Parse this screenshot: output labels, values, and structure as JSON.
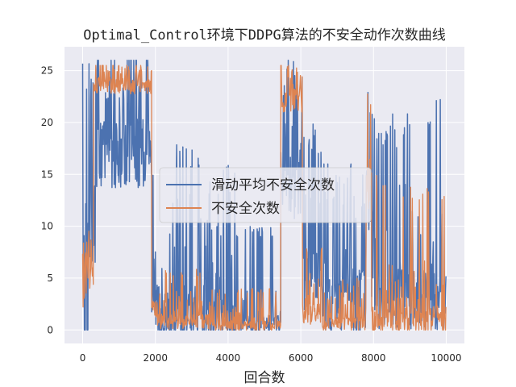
{
  "chart_data": {
    "type": "line",
    "title": "Optimal_Control环境下DDPG算法的不安全动作次数曲线",
    "xlabel": "回合数",
    "ylabel": "",
    "xlim": [
      -500,
      10500
    ],
    "ylim": [
      -1.3,
      27.3
    ],
    "xticks": [
      0,
      2000,
      4000,
      6000,
      8000,
      10000
    ],
    "yticks": [
      0,
      5,
      10,
      15,
      20,
      25
    ],
    "grid": true,
    "legend_position": "center",
    "series": [
      {
        "name": "滑动平均不安全次数",
        "color": "#4c72b0",
        "segments": [
          {
            "x": [
              0,
              150
            ],
            "level": 2,
            "spread": 14,
            "max": 26
          },
          {
            "x": [
              150,
              350
            ],
            "level": 10,
            "spread": 16,
            "max": 26
          },
          {
            "x": [
              350,
              1900
            ],
            "level": 17,
            "spread": 14,
            "max": 26
          },
          {
            "x": [
              1900,
              2000
            ],
            "level": 3,
            "spread": 6,
            "max": 15
          },
          {
            "x": [
              2000,
              3200
            ],
            "level": 1.5,
            "spread": 12,
            "max": 18
          },
          {
            "x": [
              3200,
              4200
            ],
            "level": 1,
            "spread": 10,
            "max": 16
          },
          {
            "x": [
              4200,
              5450
            ],
            "level": 0.4,
            "spread": 4,
            "max": 10
          },
          {
            "x": [
              5450,
              6050
            ],
            "level": 14,
            "spread": 14,
            "max": 26
          },
          {
            "x": [
              6050,
              6600
            ],
            "level": 5,
            "spread": 14,
            "max": 20
          },
          {
            "x": [
              6600,
              7800
            ],
            "level": 3,
            "spread": 14,
            "max": 16
          },
          {
            "x": [
              7800,
              7950
            ],
            "level": 12,
            "spread": 14,
            "max": 26
          },
          {
            "x": [
              7950,
              9200
            ],
            "level": 3,
            "spread": 12,
            "max": 21
          },
          {
            "x": [
              9200,
              10000
            ],
            "level": 3,
            "spread": 12,
            "max": 23
          }
        ]
      },
      {
        "name": "不安全次数",
        "color": "#dd8452",
        "segments": [
          {
            "x": [
              0,
              100
            ],
            "level": 3,
            "spread": 4,
            "max": 8.5
          },
          {
            "x": [
              100,
              300
            ],
            "level": 5,
            "spread": 4,
            "max": 10
          },
          {
            "x": [
              300,
              1900
            ],
            "level": 23.5,
            "spread": 3,
            "max": 25.5
          },
          {
            "x": [
              1900,
              2050
            ],
            "level": 2,
            "spread": 3,
            "max": 7
          },
          {
            "x": [
              2050,
              3500
            ],
            "level": 0.8,
            "spread": 3,
            "max": 6
          },
          {
            "x": [
              3500,
              5450
            ],
            "level": 0.4,
            "spread": 2,
            "max": 4
          },
          {
            "x": [
              5450,
              6050
            ],
            "level": 22,
            "spread": 5,
            "max": 25.5
          },
          {
            "x": [
              6050,
              6600
            ],
            "level": 1.5,
            "spread": 4,
            "max": 8
          },
          {
            "x": [
              6600,
              7800
            ],
            "level": 0.6,
            "spread": 3,
            "max": 5
          },
          {
            "x": [
              7800,
              7950
            ],
            "level": 14,
            "spread": 10,
            "max": 25
          },
          {
            "x": [
              7950,
              8600
            ],
            "level": 1,
            "spread": 6,
            "max": 15
          },
          {
            "x": [
              8600,
              10000
            ],
            "level": 0.8,
            "spread": 6,
            "max": 14
          }
        ]
      }
    ]
  }
}
